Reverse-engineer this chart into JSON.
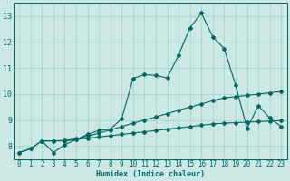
{
  "xlabel": "Humidex (Indice chaleur)",
  "ylabel": "",
  "bg_color": "#cce8e4",
  "grid_color": "#a8d4d0",
  "line_color": "#006666",
  "xlim": [
    -0.5,
    23.5
  ],
  "ylim": [
    7.5,
    13.5
  ],
  "xticks": [
    0,
    1,
    2,
    3,
    4,
    5,
    6,
    7,
    8,
    9,
    10,
    11,
    12,
    13,
    14,
    15,
    16,
    17,
    18,
    19,
    20,
    21,
    22,
    23
  ],
  "yticks": [
    8,
    9,
    10,
    11,
    12,
    13
  ],
  "line1_x": [
    0,
    1,
    2,
    3,
    4,
    5,
    6,
    7,
    8,
    9,
    10,
    11,
    12,
    13,
    14,
    15,
    16,
    17,
    18,
    19,
    20,
    21,
    22,
    23
  ],
  "line1_y": [
    7.75,
    7.9,
    8.2,
    8.2,
    8.2,
    8.25,
    8.3,
    8.35,
    8.4,
    8.45,
    8.5,
    8.55,
    8.6,
    8.65,
    8.7,
    8.75,
    8.8,
    8.85,
    8.88,
    8.9,
    8.92,
    8.94,
    8.96,
    8.98
  ],
  "line2_x": [
    0,
    1,
    2,
    3,
    4,
    5,
    6,
    7,
    8,
    9,
    10,
    11,
    12,
    13,
    14,
    15,
    16,
    17,
    18,
    19,
    20,
    21,
    22,
    23
  ],
  "line2_y": [
    7.75,
    7.9,
    8.2,
    8.2,
    8.22,
    8.28,
    8.38,
    8.5,
    8.62,
    8.75,
    8.88,
    9.0,
    9.12,
    9.25,
    9.38,
    9.5,
    9.62,
    9.75,
    9.85,
    9.9,
    9.95,
    10.0,
    10.05,
    10.1
  ],
  "line3_x": [
    2,
    3,
    4,
    5,
    6,
    7,
    8,
    9,
    10,
    11,
    12,
    13,
    14,
    15,
    16,
    17,
    18,
    19,
    20,
    21,
    22,
    23
  ],
  "line3_y": [
    8.2,
    7.75,
    8.05,
    8.25,
    8.45,
    8.6,
    8.65,
    9.05,
    10.6,
    10.75,
    10.72,
    10.62,
    11.5,
    12.55,
    13.12,
    12.2,
    11.75,
    10.35,
    8.68,
    9.55,
    9.08,
    8.75
  ],
  "marker": "D",
  "markersize": 2.0,
  "linewidth": 0.8,
  "xlabel_fontsize": 6,
  "tick_fontsize": 5.5
}
